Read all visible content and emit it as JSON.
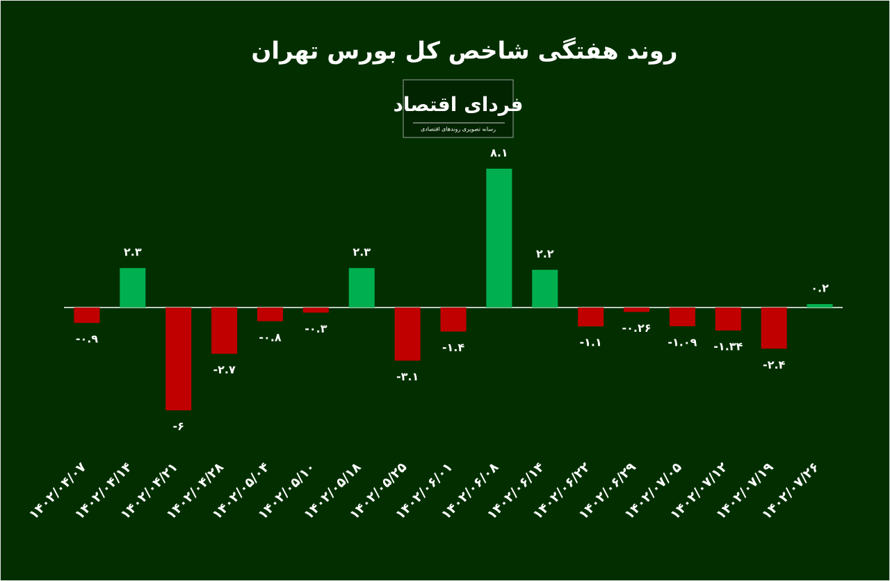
{
  "chart_data": {
    "type": "bar",
    "title": "روند هفتگی شاخص کل بورس تهران",
    "logo_title": "فردای اقتصاد",
    "logo_subtitle": "رسانه تصویری روندهای اقتصادی",
    "categories": [
      "۱۴۰۲/۰۴/۰۷",
      "۱۴۰۲/۰۴/۱۴",
      "۱۴۰۲/۰۴/۲۱",
      "۱۴۰۲/۰۴/۲۸",
      "۱۴۰۲/۰۵/۰۴",
      "۱۴۰۲/۰۵/۱۰",
      "۱۴۰۲/۰۵/۱۸",
      "۱۴۰۲/۰۵/۲۵",
      "۱۴۰۲/۰۶/۰۱",
      "۱۴۰۲/۰۶/۰۸",
      "۱۴۰۲/۰۶/۱۴",
      "۱۴۰۲/۰۶/۲۲",
      "۱۴۰۲/۰۶/۲۹",
      "۱۴۰۲/۰۷/۰۵",
      "۱۴۰۲/۰۷/۱۲",
      "۱۴۰۲/۰۷/۱۹",
      "۱۴۰۲/۰۷/۲۶"
    ],
    "values": [
      -0.9,
      2.3,
      -6,
      -2.7,
      -0.8,
      -0.3,
      2.3,
      -3.1,
      -1.4,
      8.1,
      2.2,
      -1.1,
      -0.26,
      -1.09,
      -1.34,
      -2.4,
      0.2
    ],
    "value_labels": [
      "-۰.۹",
      "۲.۳",
      "-۶",
      "-۲.۷",
      "-۰.۸",
      "-۰.۳",
      "۲.۳",
      "-۳.۱",
      "-۱.۴",
      "۸.۱",
      "۲.۲",
      "-۱.۱",
      "-۰.۲۶",
      "-۱.۰۹",
      "-۱.۳۴",
      "-۲.۴",
      "۰.۲"
    ],
    "positive_color": "#00b050",
    "negative_color": "#c00000"
  }
}
